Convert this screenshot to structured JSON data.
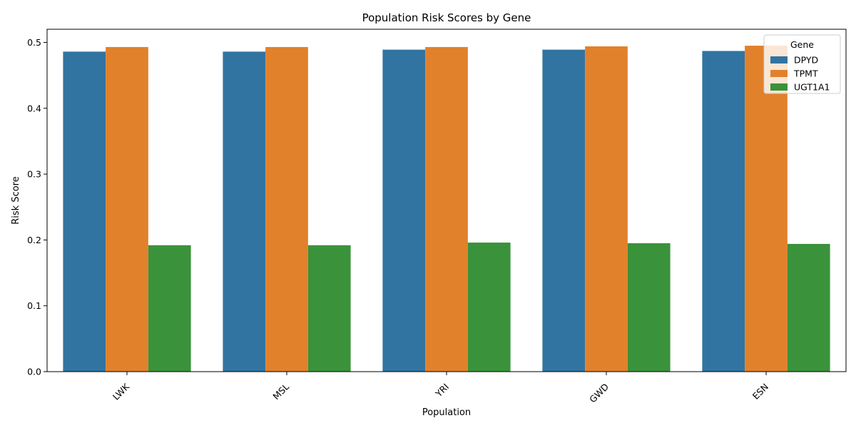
{
  "chart_data": {
    "type": "bar",
    "title": "Population Risk Scores by Gene",
    "xlabel": "Population",
    "ylabel": "Risk Score",
    "categories": [
      "LWK",
      "MSL",
      "YRI",
      "GWD",
      "ESN"
    ],
    "series": [
      {
        "name": "DPYD",
        "color": "#3274a1",
        "values": [
          0.486,
          0.486,
          0.489,
          0.489,
          0.487
        ]
      },
      {
        "name": "TPMT",
        "color": "#e1812c",
        "values": [
          0.493,
          0.493,
          0.493,
          0.494,
          0.495
        ]
      },
      {
        "name": "UGT1A1",
        "color": "#3a923a",
        "values": [
          0.192,
          0.192,
          0.196,
          0.195,
          0.194
        ]
      }
    ],
    "ylim": [
      0,
      0.52
    ],
    "yticks": [
      "0.0",
      "0.1",
      "0.2",
      "0.3",
      "0.4",
      "0.5"
    ],
    "legend": {
      "title": "Gene",
      "placement": "top-right"
    },
    "grid": false
  }
}
